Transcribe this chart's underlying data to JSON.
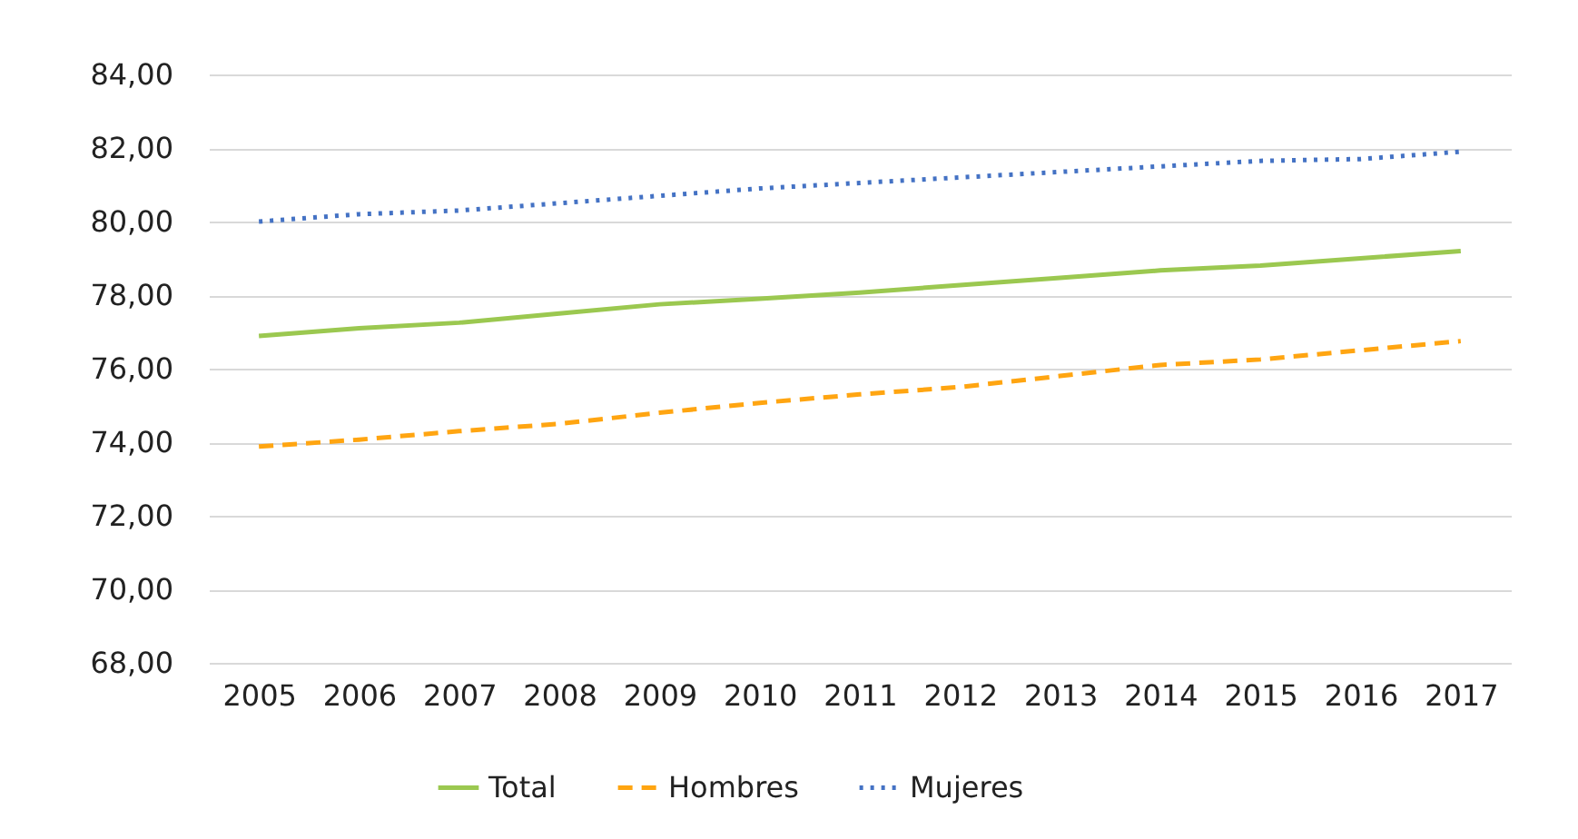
{
  "chart_data": {
    "type": "line",
    "categories": [
      "2005",
      "2006",
      "2007",
      "2008",
      "2009",
      "2010",
      "2011",
      "2012",
      "2013",
      "2014",
      "2015",
      "2016",
      "2017"
    ],
    "series": [
      {
        "name": "Total",
        "color": "#9bc850",
        "line_style": "solid",
        "values": [
          76.89,
          77.1,
          77.25,
          77.5,
          77.75,
          77.9,
          78.07,
          78.27,
          78.47,
          78.67,
          78.8,
          79.0,
          79.2
        ]
      },
      {
        "name": "Hombres",
        "color": "#ffa511",
        "line_style": "dashed",
        "values": [
          73.88,
          74.07,
          74.3,
          74.5,
          74.8,
          75.07,
          75.3,
          75.5,
          75.8,
          76.1,
          76.25,
          76.5,
          76.75
        ]
      },
      {
        "name": "Mujeres",
        "color": "#4472c4",
        "line_style": "dotted",
        "values": [
          80.0,
          80.2,
          80.3,
          80.5,
          80.7,
          80.9,
          81.05,
          81.2,
          81.35,
          81.5,
          81.65,
          81.7,
          81.9
        ]
      }
    ],
    "ylim": [
      68,
      84
    ],
    "yticks": [
      {
        "value": 68,
        "label": "68,00"
      },
      {
        "value": 70,
        "label": "70,00"
      },
      {
        "value": 72,
        "label": "72,00"
      },
      {
        "value": 74,
        "label": "74,00"
      },
      {
        "value": 76,
        "label": "76,00"
      },
      {
        "value": 78,
        "label": "78,00"
      },
      {
        "value": 80,
        "label": "80,00"
      },
      {
        "value": 82,
        "label": "82,00"
      },
      {
        "value": 84,
        "label": "84,00"
      }
    ],
    "grid": "y",
    "legend": "bottom"
  }
}
